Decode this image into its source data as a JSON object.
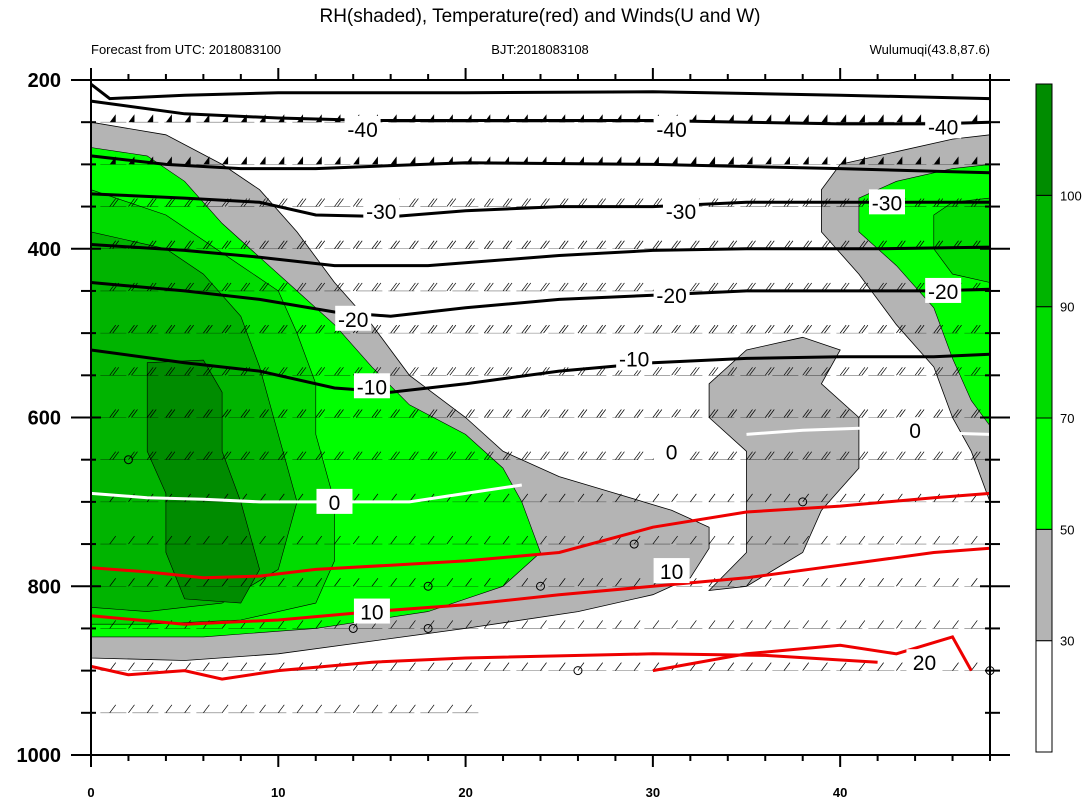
{
  "chart_data": {
    "type": "contour",
    "title": "RH(shaded), Temperature(red) and Winds(U and W)",
    "subtitle_left": "Forecast from UTC: 2018083100",
    "subtitle_center": "BJT:2018083108",
    "subtitle_right": "Wulumuqi(43.8,87.6)",
    "x_ticks": [
      "0",
      "10",
      "20",
      "30",
      "40"
    ],
    "xlim": [
      0,
      48
    ],
    "y_ticks": [
      "200",
      "400",
      "600",
      "800",
      "1000"
    ],
    "ylim": [
      1000,
      200
    ],
    "colorbar": {
      "ticks": [
        "30",
        "50",
        "70",
        "90",
        "100"
      ],
      "colors": [
        "#ffffff",
        "#b4b4b4",
        "#00ff00",
        "#00dc00",
        "#00b400",
        "#008c00"
      ],
      "levels": [
        0,
        30,
        50,
        70,
        90,
        100,
        110
      ]
    },
    "rh_shading": [
      {
        "level": 30,
        "color": "#b4b4b4",
        "desc": "RH >= 30 regions"
      },
      {
        "level": 50,
        "color": "#00ff00"
      },
      {
        "level": 70,
        "color": "#00dc00"
      },
      {
        "level": 90,
        "color": "#00b400"
      }
    ],
    "temperature_contour_labels": [
      "-40",
      "-40",
      "-40",
      "-30",
      "-30",
      "-30",
      "-20",
      "-20",
      "-20",
      "-10",
      "-10",
      "0",
      "0",
      "0",
      "10",
      "10",
      "20"
    ],
    "black_contours": [
      {
        "label": "-40",
        "points": [
          [
            0,
            225
          ],
          [
            5,
            240
          ],
          [
            10,
            245
          ],
          [
            15,
            248
          ],
          [
            20,
            248
          ],
          [
            25,
            248
          ],
          [
            30,
            248
          ],
          [
            35,
            250
          ],
          [
            40,
            252
          ],
          [
            45,
            252
          ],
          [
            48,
            250
          ]
        ]
      },
      {
        "label": "-30",
        "points": [
          [
            0,
            335
          ],
          [
            5,
            340
          ],
          [
            9,
            345
          ],
          [
            12,
            360
          ],
          [
            16,
            362
          ],
          [
            20,
            355
          ],
          [
            25,
            350
          ],
          [
            30,
            350
          ],
          [
            35,
            345
          ],
          [
            40,
            345
          ],
          [
            45,
            345
          ],
          [
            48,
            345
          ]
        ]
      },
      {
        "label": "-20",
        "points": [
          [
            0,
            440
          ],
          [
            5,
            450
          ],
          [
            9,
            460
          ],
          [
            13,
            475
          ],
          [
            16,
            480
          ],
          [
            20,
            470
          ],
          [
            25,
            460
          ],
          [
            30,
            455
          ],
          [
            35,
            450
          ],
          [
            40,
            450
          ],
          [
            45,
            450
          ],
          [
            48,
            448
          ]
        ]
      },
      {
        "label": "-10",
        "points": [
          [
            0,
            520
          ],
          [
            5,
            535
          ],
          [
            9,
            545
          ],
          [
            13,
            565
          ],
          [
            16,
            570
          ],
          [
            20,
            560
          ],
          [
            25,
            545
          ],
          [
            30,
            535
          ],
          [
            35,
            530
          ],
          [
            40,
            528
          ],
          [
            45,
            528
          ],
          [
            48,
            525
          ]
        ]
      }
    ],
    "white_contours": [
      {
        "label": "0",
        "points": [
          [
            0,
            690
          ],
          [
            3,
            695
          ],
          [
            6,
            697
          ],
          [
            9,
            700
          ],
          [
            12,
            700
          ],
          [
            17,
            700
          ],
          [
            20,
            690
          ],
          [
            23,
            680
          ]
        ]
      },
      {
        "label": "0",
        "points": [
          [
            35,
            620
          ],
          [
            38,
            615
          ],
          [
            42,
            612
          ],
          [
            45,
            618
          ],
          [
            48,
            620
          ]
        ]
      }
    ],
    "red_contours": [
      {
        "label": "10",
        "points": [
          [
            0,
            778
          ],
          [
            3,
            783
          ],
          [
            6,
            790
          ],
          [
            9,
            788
          ],
          [
            12,
            780
          ],
          [
            16,
            775
          ],
          [
            20,
            770
          ],
          [
            25,
            760
          ],
          [
            30,
            730
          ],
          [
            35,
            712
          ],
          [
            40,
            705
          ],
          [
            45,
            695
          ],
          [
            48,
            690
          ]
        ]
      },
      {
        "label": "10",
        "points": [
          [
            0,
            835
          ],
          [
            5,
            845
          ],
          [
            10,
            840
          ],
          [
            15,
            830
          ],
          [
            20,
            822
          ],
          [
            25,
            810
          ],
          [
            30,
            800
          ],
          [
            35,
            790
          ],
          [
            40,
            775
          ],
          [
            45,
            760
          ],
          [
            48,
            755
          ]
        ]
      },
      {
        "label": "20",
        "points": [
          [
            30,
            900
          ],
          [
            35,
            880
          ],
          [
            40,
            870
          ],
          [
            43,
            880
          ],
          [
            46,
            860
          ],
          [
            47,
            900
          ]
        ]
      }
    ],
    "dark_gray_contours": [
      {
        "points": [
          [
            0,
            890
          ],
          [
            3,
            895
          ],
          [
            6,
            890
          ],
          [
            10,
            885
          ],
          [
            15,
            880
          ],
          [
            20,
            875
          ],
          [
            25,
            870
          ],
          [
            30,
            860
          ],
          [
            33,
            850
          ],
          [
            33,
            830
          ],
          [
            30,
            800
          ],
          [
            25,
            770
          ],
          [
            20,
            700
          ],
          [
            15,
            640
          ],
          [
            13,
            560
          ],
          [
            12,
            480
          ],
          [
            10,
            420
          ],
          [
            9,
            380
          ],
          [
            8,
            330
          ],
          [
            5,
            280
          ],
          [
            3,
            255
          ],
          [
            0,
            250
          ]
        ]
      }
    ]
  }
}
